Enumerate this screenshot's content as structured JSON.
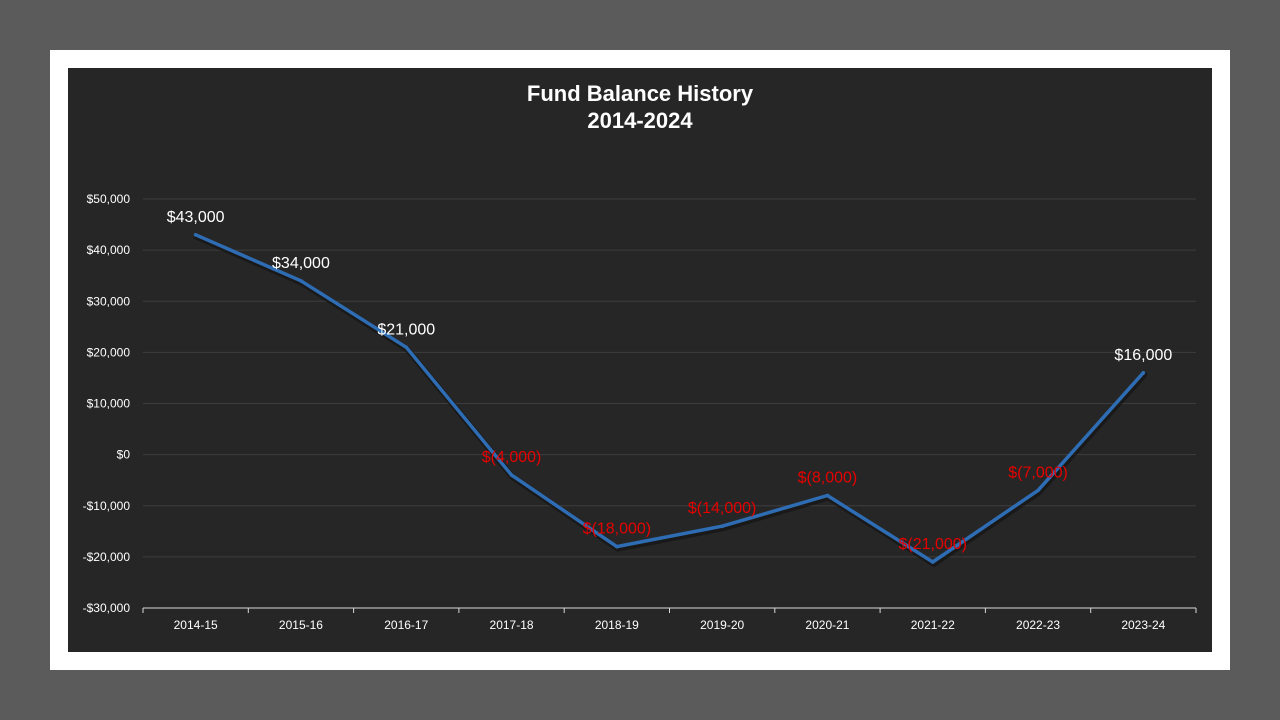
{
  "chart_data": {
    "type": "line",
    "title": "Fund Balance History",
    "subtitle": "2014-2024",
    "xlabel": "",
    "ylabel": "",
    "categories": [
      "2014-15",
      "2015-16",
      "2016-17",
      "2017-18",
      "2018-19",
      "2019-20",
      "2020-21",
      "2021-22",
      "2022-23",
      "2023-24"
    ],
    "series": [
      {
        "values": [
          43000,
          34000,
          21000,
          -4000,
          -18000,
          -14000,
          -8000,
          -21000,
          -7000,
          16000
        ]
      }
    ],
    "data_labels": [
      "$43,000",
      "$34,000",
      "$21,000",
      "$(4,000)",
      "$(18,000)",
      "$(14,000)",
      "$(8,000)",
      "$(21,000)",
      "$(7,000)",
      "$16,000"
    ],
    "y_ticks": [
      {
        "value": 50000,
        "label": "$50,000"
      },
      {
        "value": 40000,
        "label": "$40,000"
      },
      {
        "value": 30000,
        "label": "$30,000"
      },
      {
        "value": 20000,
        "label": "$20,000"
      },
      {
        "value": 10000,
        "label": "$10,000"
      },
      {
        "value": 0,
        "label": "$0"
      },
      {
        "value": -10000,
        "label": "-$10,000"
      },
      {
        "value": -20000,
        "label": "-$20,000"
      },
      {
        "value": -30000,
        "label": "-$30,000"
      }
    ],
    "ylim": [
      -30000,
      50000
    ],
    "grid": true,
    "legend": "none",
    "colors": {
      "line": "#2e6db4",
      "positive_label": "#ffffff",
      "negative_label": "#e60000",
      "grid": "#3d3d3d",
      "axis": "#d9d9d9",
      "plot_background": "#262626"
    }
  }
}
